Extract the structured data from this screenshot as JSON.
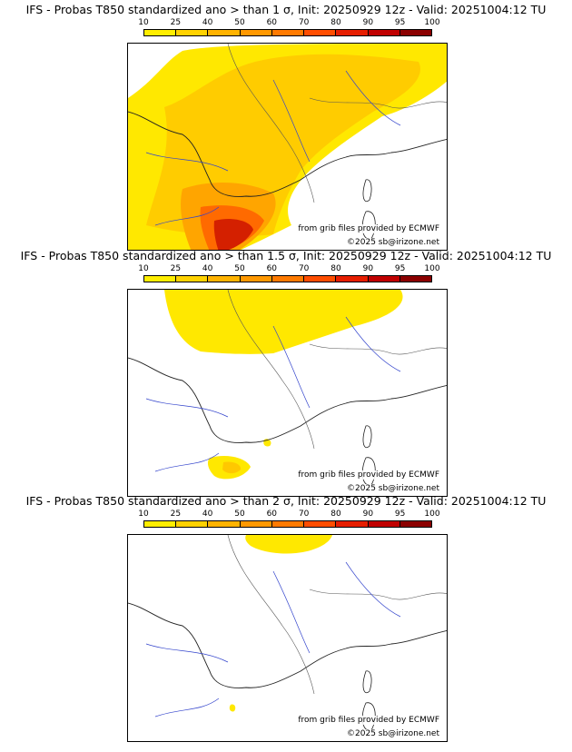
{
  "panels": [
    {
      "title": "IFS - Probas T850  standardized ano > than 1 σ, Init: 20250929 12z - Valid: 20251004:12 TU",
      "source": "from grib files provided by ECMWF",
      "copyright": "©2025 sb@irizone.net"
    },
    {
      "title": "IFS - Probas T850  standardized ano > than 1.5 σ, Init: 20250929 12z - Valid: 20251004:12 TU",
      "source": "from grib files provided by ECMWF",
      "copyright": "©2025 sb@irizone.net"
    },
    {
      "title": "IFS - Probas T850  standardized ano > than 2 σ, Init: 20250929 12z - Valid: 20251004:12 TU",
      "source": "from grib files provided by ECMWF",
      "copyright": "©2025 sb@irizone.net"
    }
  ],
  "legend": {
    "ticks": [
      "10",
      "25",
      "40",
      "50",
      "60",
      "70",
      "80",
      "90",
      "95",
      "100"
    ],
    "colors": [
      "#ffee00",
      "#ffd200",
      "#ffb300",
      "#ff9800",
      "#ff7a00",
      "#ff4d00",
      "#e61e00",
      "#c00000",
      "#8b0000"
    ]
  }
}
